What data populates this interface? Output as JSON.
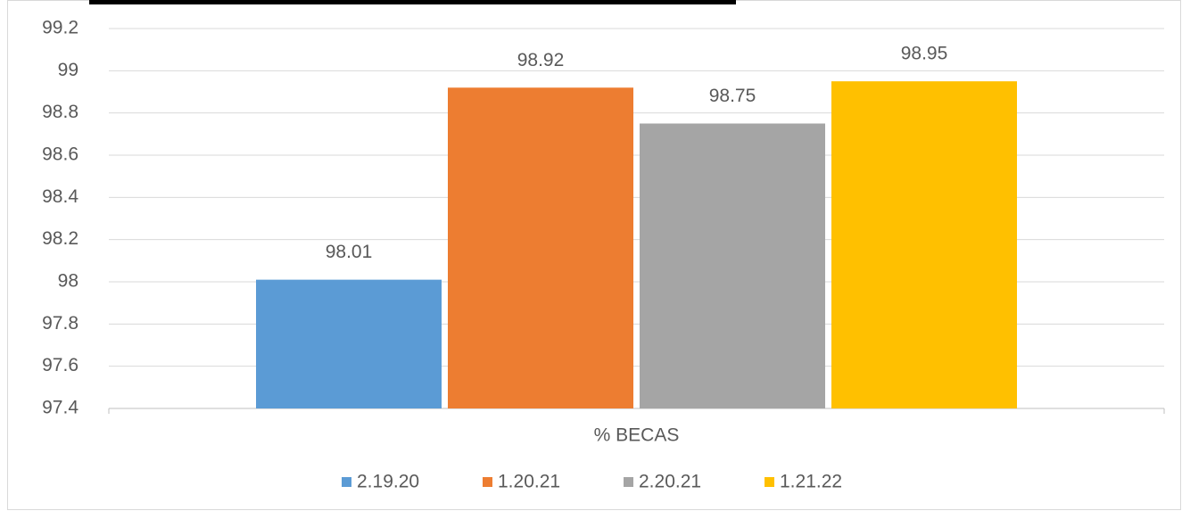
{
  "chart_data": {
    "type": "bar",
    "categories": [
      "% BECAS"
    ],
    "series": [
      {
        "name": "2.19.20",
        "color": "#5b9bd5",
        "values": [
          98.01
        ]
      },
      {
        "name": "1.20.21",
        "color": "#ed7d31",
        "values": [
          98.92
        ]
      },
      {
        "name": "2.20.21",
        "color": "#a5a5a5",
        "values": [
          98.75
        ]
      },
      {
        "name": "1.21.22",
        "color": "#ffc000",
        "values": [
          98.95
        ]
      }
    ],
    "ylim": [
      97.4,
      99.2
    ],
    "yticks": [
      97.4,
      97.6,
      97.8,
      98,
      98.2,
      98.4,
      98.6,
      98.8,
      99,
      99.2
    ],
    "grid": true,
    "legend": "bottom"
  }
}
